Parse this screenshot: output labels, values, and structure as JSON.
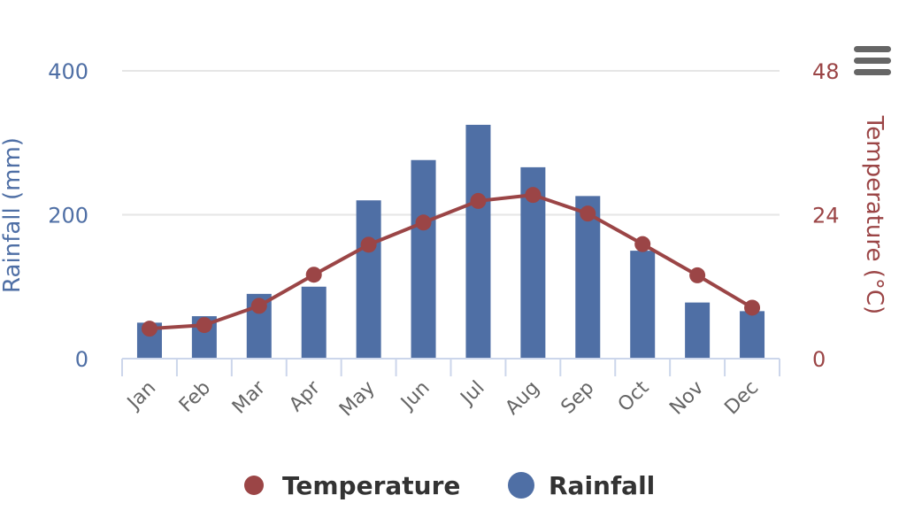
{
  "chart_data": {
    "type": "bar+line",
    "categories": [
      "Jan",
      "Feb",
      "Mar",
      "Apr",
      "May",
      "Jun",
      "Jul",
      "Aug",
      "Sep",
      "Oct",
      "Nov",
      "Dec"
    ],
    "series": [
      {
        "name": "Rainfall",
        "type": "bar",
        "axis": "left",
        "color": "#4f6fa5",
        "values": [
          50,
          59,
          90,
          100,
          220,
          276,
          325,
          266,
          226,
          150,
          78,
          66
        ]
      },
      {
        "name": "Temperature",
        "type": "line",
        "axis": "right",
        "color": "#9b4546",
        "values": [
          5.0,
          5.6,
          8.8,
          14.0,
          19.0,
          22.7,
          26.3,
          27.3,
          24.2,
          19.1,
          13.9,
          8.5
        ]
      }
    ],
    "y_left": {
      "label": "Rainfall (mm)",
      "range": [
        0,
        400
      ],
      "ticks": [
        0,
        200,
        400
      ]
    },
    "y_right": {
      "label": "Temperature (°C)",
      "range": [
        0,
        48
      ],
      "ticks": [
        0,
        24,
        48
      ]
    },
    "grid": true,
    "legend": {
      "position": "bottom-center",
      "items": [
        {
          "name": "Temperature",
          "color": "#9b4546"
        },
        {
          "name": "Rainfall",
          "color": "#4f6fa5"
        }
      ]
    }
  },
  "menu": {
    "icon": "hamburger-menu-icon"
  }
}
